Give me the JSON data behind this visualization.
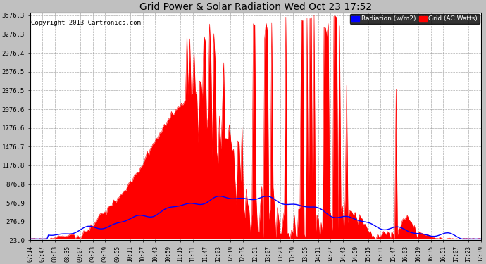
{
  "title": "Grid Power & Solar Radiation Wed Oct 23 17:52",
  "copyright": "Copyright 2013 Cartronics.com",
  "background_color": "#c0c0c0",
  "plot_bg_color": "#ffffff",
  "grid_color": "#999999",
  "yticks": [
    -23.0,
    276.9,
    576.9,
    876.8,
    1176.8,
    1476.7,
    1776.6,
    2076.6,
    2376.5,
    2676.5,
    2976.4,
    3276.3,
    3576.3
  ],
  "ylim": [
    -23.0,
    3620.0
  ],
  "legend_radiation_label": "Radiation (w/m2)",
  "legend_grid_label": "Grid (AC Watts)",
  "radiation_color": "#0000ff",
  "grid_fill_color": "#ff0000",
  "xtick_labels": [
    "07:14",
    "07:47",
    "08:03",
    "08:35",
    "09:07",
    "09:23",
    "09:39",
    "09:55",
    "10:11",
    "10:27",
    "10:43",
    "10:59",
    "11:15",
    "11:31",
    "11:47",
    "12:03",
    "12:19",
    "12:35",
    "12:51",
    "13:07",
    "13:23",
    "13:39",
    "13:55",
    "14:11",
    "14:27",
    "14:43",
    "14:59",
    "15:15",
    "15:31",
    "15:47",
    "16:03",
    "16:19",
    "16:35",
    "16:51",
    "17:07",
    "17:23",
    "17:39"
  ]
}
